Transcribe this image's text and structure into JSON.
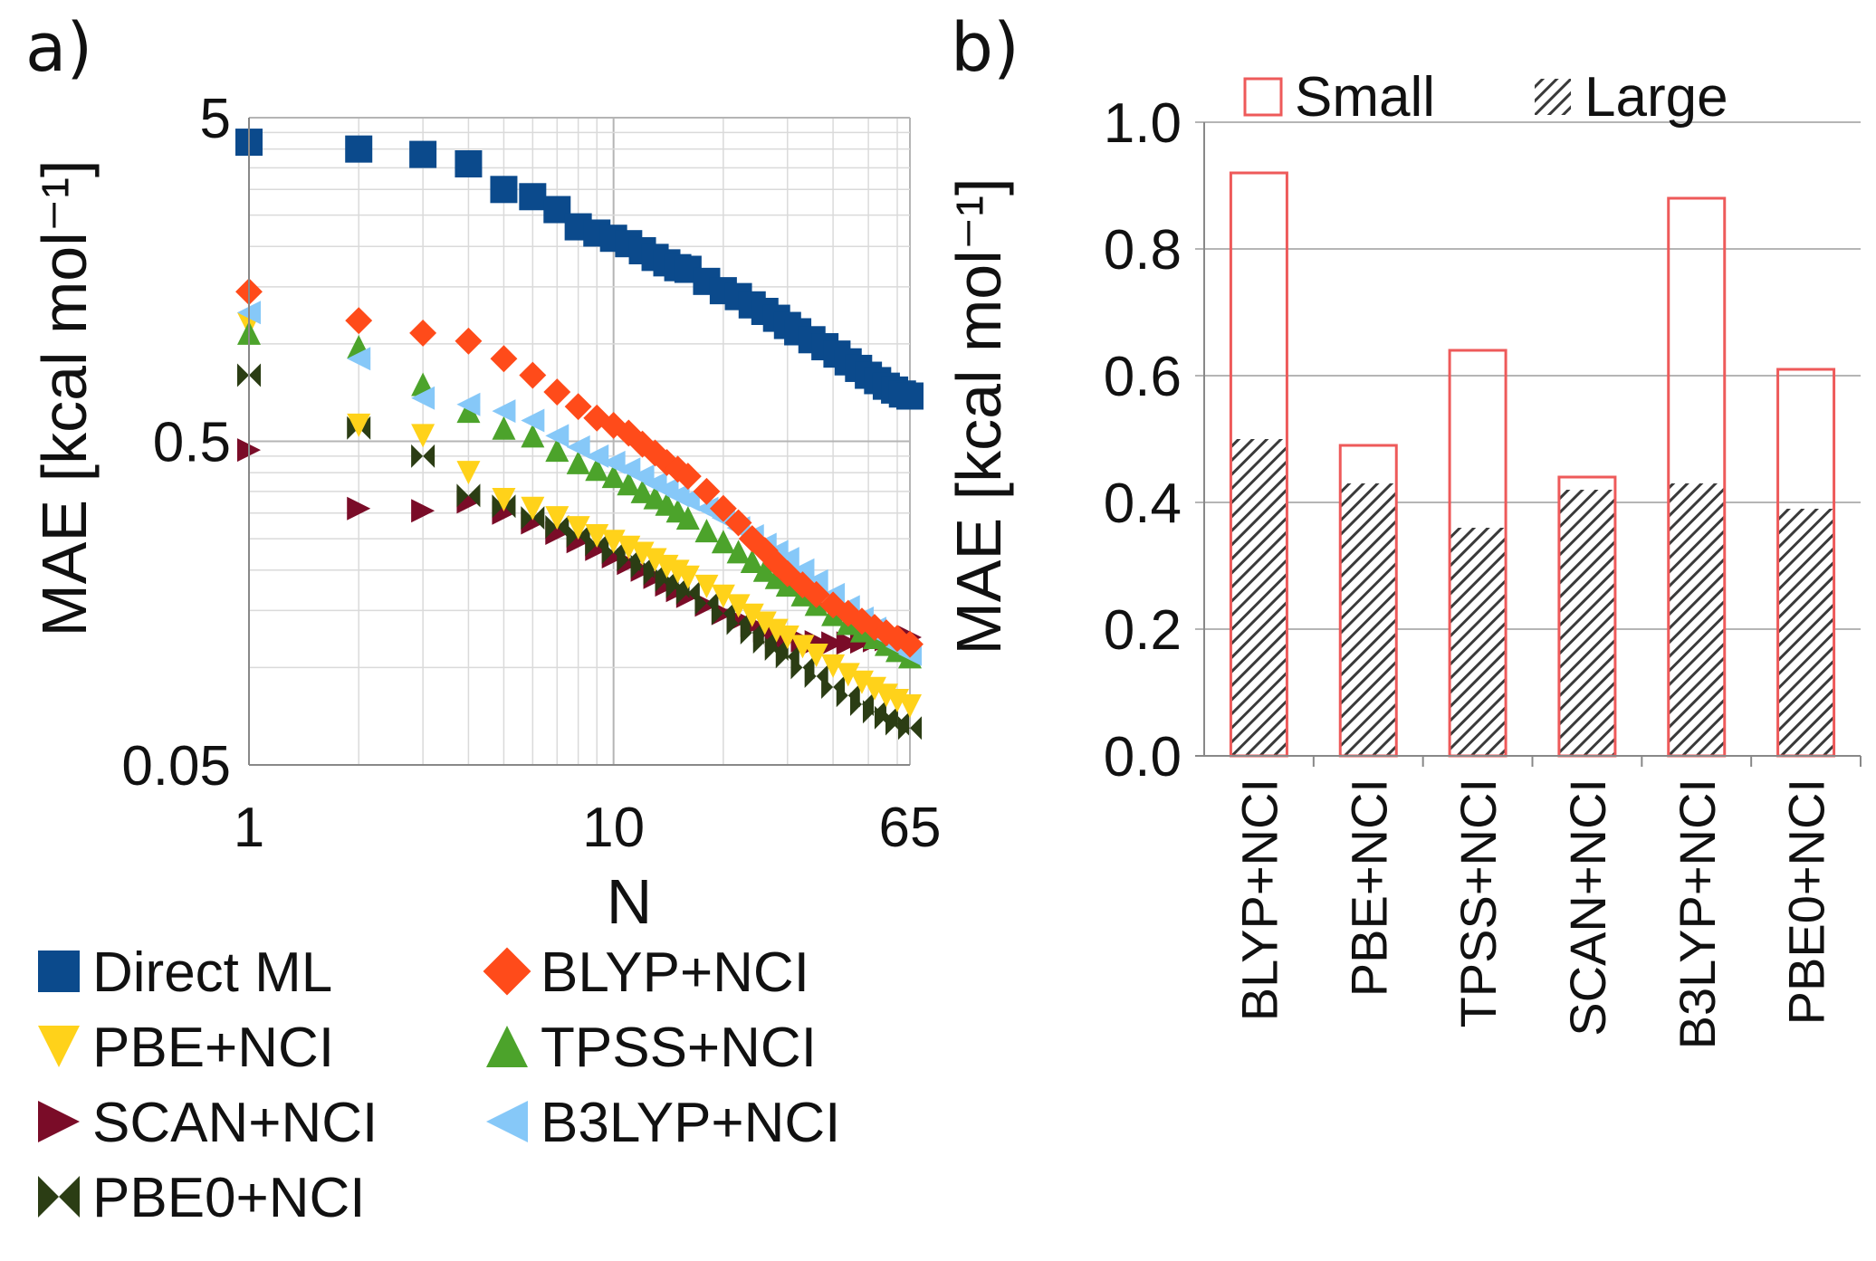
{
  "figure": {
    "panel_a_label": "a)",
    "panel_b_label": "b)"
  },
  "colors": {
    "direct": "#0b4a8c",
    "blyp": "#ff4b1a",
    "pbe": "#ffd21a",
    "tpss": "#4ca32b",
    "scan": "#7a0c28",
    "b3lyp": "#86c8f8",
    "pbe0": "#2b3d14",
    "bar_small": "#ee5a5a",
    "bar_large": "#3a3a3a",
    "grid": "#c8c8c8"
  },
  "chart_data": [
    {
      "id": "panel-a",
      "type": "scatter",
      "title": "",
      "xlabel": "N",
      "ylabel": "MAE [kcal mol⁻¹]",
      "xscale": "log",
      "yscale": "log",
      "xlim": [
        1,
        65
      ],
      "ylim": [
        0.05,
        5
      ],
      "xticks": [
        {
          "value": 1,
          "label": "1"
        },
        {
          "value": 10,
          "label": "10"
        },
        {
          "value": 65,
          "label": "65"
        }
      ],
      "yticks": [
        {
          "value": 5,
          "label": "5"
        },
        {
          "value": 0.5,
          "label": "0.5"
        },
        {
          "value": 0.05,
          "label": "0.05"
        }
      ],
      "grid": true,
      "legend_position": "bottom",
      "series": [
        {
          "name": "Direct ML",
          "key": "direct",
          "marker": "square",
          "points": [
            [
              1,
              4.2
            ],
            [
              2,
              4.0
            ],
            [
              3,
              3.85
            ],
            [
              4,
              3.6
            ],
            [
              5,
              3.0
            ],
            [
              6,
              2.85
            ],
            [
              7,
              2.6
            ],
            [
              8,
              2.3
            ],
            [
              9,
              2.2
            ],
            [
              10,
              2.12
            ],
            [
              11,
              2.04
            ],
            [
              12,
              1.94
            ],
            [
              13,
              1.85
            ],
            [
              14,
              1.78
            ],
            [
              15,
              1.72
            ],
            [
              16,
              1.7
            ],
            [
              18,
              1.56
            ],
            [
              20,
              1.46
            ],
            [
              22,
              1.4
            ],
            [
              24,
              1.32
            ],
            [
              26,
              1.26
            ],
            [
              28,
              1.2
            ],
            [
              30,
              1.14
            ],
            [
              32,
              1.09
            ],
            [
              35,
              1.03
            ],
            [
              38,
              0.98
            ],
            [
              41,
              0.93
            ],
            [
              44,
              0.88
            ],
            [
              47,
              0.84
            ],
            [
              50,
              0.8
            ],
            [
              53,
              0.77
            ],
            [
              56,
              0.74
            ],
            [
              59,
              0.72
            ],
            [
              62,
              0.7
            ],
            [
              65,
              0.69
            ]
          ]
        },
        {
          "name": "BLYP+NCI",
          "key": "blyp",
          "marker": "diamond",
          "points": [
            [
              1,
              1.45
            ],
            [
              2,
              1.18
            ],
            [
              3,
              1.08
            ],
            [
              4,
              1.02
            ],
            [
              5,
              0.9
            ],
            [
              6,
              0.8
            ],
            [
              7,
              0.71
            ],
            [
              8,
              0.64
            ],
            [
              9,
              0.59
            ],
            [
              10,
              0.56
            ],
            [
              11,
              0.53
            ],
            [
              12,
              0.49
            ],
            [
              13,
              0.46
            ],
            [
              14,
              0.43
            ],
            [
              15,
              0.41
            ],
            [
              16,
              0.39
            ],
            [
              18,
              0.35
            ],
            [
              20,
              0.31
            ],
            [
              22,
              0.28
            ],
            [
              24,
              0.25
            ],
            [
              26,
              0.23
            ],
            [
              28,
              0.21
            ],
            [
              30,
              0.195
            ],
            [
              33,
              0.18
            ],
            [
              36,
              0.168
            ],
            [
              40,
              0.156
            ],
            [
              44,
              0.147
            ],
            [
              48,
              0.139
            ],
            [
              52,
              0.133
            ],
            [
              56,
              0.128
            ],
            [
              60,
              0.123
            ],
            [
              65,
              0.118
            ]
          ]
        },
        {
          "name": "PBE+NCI",
          "key": "pbe",
          "marker": "triangle-down",
          "points": [
            [
              1,
              1.15
            ],
            [
              2,
              0.56
            ],
            [
              3,
              0.52
            ],
            [
              4,
              0.4
            ],
            [
              5,
              0.33
            ],
            [
              6,
              0.31
            ],
            [
              7,
              0.29
            ],
            [
              8,
              0.27
            ],
            [
              9,
              0.255
            ],
            [
              10,
              0.245
            ],
            [
              11,
              0.235
            ],
            [
              12,
              0.225
            ],
            [
              13,
              0.215
            ],
            [
              14,
              0.205
            ],
            [
              15,
              0.198
            ],
            [
              16,
              0.19
            ],
            [
              18,
              0.178
            ],
            [
              20,
              0.166
            ],
            [
              22,
              0.155
            ],
            [
              24,
              0.145
            ],
            [
              26,
              0.137
            ],
            [
              28,
              0.13
            ],
            [
              30,
              0.124
            ],
            [
              33,
              0.116
            ],
            [
              36,
              0.109
            ],
            [
              40,
              0.101
            ],
            [
              44,
              0.095
            ],
            [
              48,
              0.09
            ],
            [
              52,
              0.086
            ],
            [
              56,
              0.082
            ],
            [
              60,
              0.079
            ],
            [
              65,
              0.076
            ]
          ]
        },
        {
          "name": "TPSS+NCI",
          "key": "tpss",
          "marker": "triangle-up",
          "points": [
            [
              1,
              1.08
            ],
            [
              2,
              0.98
            ],
            [
              3,
              0.75
            ],
            [
              4,
              0.62
            ],
            [
              5,
              0.55
            ],
            [
              6,
              0.52
            ],
            [
              7,
              0.47
            ],
            [
              8,
              0.43
            ],
            [
              9,
              0.41
            ],
            [
              10,
              0.39
            ],
            [
              11,
              0.37
            ],
            [
              12,
              0.35
            ],
            [
              13,
              0.335
            ],
            [
              14,
              0.32
            ],
            [
              15,
              0.305
            ],
            [
              16,
              0.29
            ],
            [
              18,
              0.265
            ],
            [
              20,
              0.245
            ],
            [
              22,
              0.228
            ],
            [
              24,
              0.213
            ],
            [
              26,
              0.2
            ],
            [
              28,
              0.19
            ],
            [
              30,
              0.18
            ],
            [
              33,
              0.168
            ],
            [
              36,
              0.157
            ],
            [
              40,
              0.146
            ],
            [
              44,
              0.137
            ],
            [
              48,
              0.13
            ],
            [
              52,
              0.124
            ],
            [
              56,
              0.118
            ],
            [
              60,
              0.113
            ],
            [
              65,
              0.108
            ]
          ]
        },
        {
          "name": "SCAN+NCI",
          "key": "scan",
          "marker": "triangle-right",
          "points": [
            [
              1,
              0.47
            ],
            [
              2,
              0.31
            ],
            [
              3,
              0.305
            ],
            [
              4,
              0.325
            ],
            [
              5,
              0.3
            ],
            [
              6,
              0.28
            ],
            [
              7,
              0.26
            ],
            [
              8,
              0.245
            ],
            [
              9,
              0.232
            ],
            [
              10,
              0.22
            ],
            [
              11,
              0.21
            ],
            [
              12,
              0.2
            ],
            [
              13,
              0.19
            ],
            [
              14,
              0.18
            ],
            [
              15,
              0.173
            ],
            [
              16,
              0.166
            ],
            [
              18,
              0.156
            ],
            [
              20,
              0.147
            ],
            [
              22,
              0.14
            ],
            [
              24,
              0.135
            ],
            [
              26,
              0.13
            ],
            [
              28,
              0.126
            ],
            [
              30,
              0.123
            ],
            [
              33,
              0.121
            ],
            [
              36,
              0.12
            ],
            [
              40,
              0.119
            ],
            [
              44,
              0.119
            ],
            [
              48,
              0.12
            ],
            [
              52,
              0.121
            ],
            [
              56,
              0.122
            ],
            [
              60,
              0.123
            ],
            [
              65,
              0.124
            ]
          ]
        },
        {
          "name": "B3LYP+NCI",
          "key": "b3lyp",
          "marker": "triangle-left",
          "points": [
            [
              1,
              1.25
            ],
            [
              2,
              0.9
            ],
            [
              3,
              0.68
            ],
            [
              4,
              0.65
            ],
            [
              5,
              0.62
            ],
            [
              6,
              0.58
            ],
            [
              7,
              0.52
            ],
            [
              8,
              0.48
            ],
            [
              9,
              0.45
            ],
            [
              10,
              0.43
            ],
            [
              11,
              0.41
            ],
            [
              12,
              0.39
            ],
            [
              13,
              0.37
            ],
            [
              14,
              0.355
            ],
            [
              15,
              0.34
            ],
            [
              16,
              0.33
            ],
            [
              18,
              0.31
            ],
            [
              20,
              0.29
            ],
            [
              22,
              0.27
            ],
            [
              24,
              0.255
            ],
            [
              26,
              0.24
            ],
            [
              28,
              0.228
            ],
            [
              30,
              0.217
            ],
            [
              33,
              0.2
            ],
            [
              36,
              0.185
            ],
            [
              40,
              0.168
            ],
            [
              44,
              0.154
            ],
            [
              48,
              0.142
            ],
            [
              52,
              0.132
            ],
            [
              56,
              0.123
            ],
            [
              60,
              0.116
            ],
            [
              65,
              0.11
            ]
          ]
        },
        {
          "name": "PBE0+NCI",
          "key": "pbe0",
          "marker": "bowtie",
          "points": [
            [
              1,
              0.8
            ],
            [
              2,
              0.55
            ],
            [
              3,
              0.45
            ],
            [
              4,
              0.34
            ],
            [
              5,
              0.315
            ],
            [
              6,
              0.29
            ],
            [
              7,
              0.272
            ],
            [
              8,
              0.255
            ],
            [
              9,
              0.24
            ],
            [
              10,
              0.227
            ],
            [
              11,
              0.215
            ],
            [
              12,
              0.205
            ],
            [
              13,
              0.195
            ],
            [
              14,
              0.186
            ],
            [
              15,
              0.178
            ],
            [
              16,
              0.17
            ],
            [
              18,
              0.158
            ],
            [
              20,
              0.147
            ],
            [
              22,
              0.137
            ],
            [
              24,
              0.128
            ],
            [
              26,
              0.12
            ],
            [
              28,
              0.114
            ],
            [
              30,
              0.108
            ],
            [
              33,
              0.1
            ],
            [
              36,
              0.094
            ],
            [
              40,
              0.087
            ],
            [
              44,
              0.082
            ],
            [
              48,
              0.077
            ],
            [
              52,
              0.073
            ],
            [
              56,
              0.07
            ],
            [
              60,
              0.067
            ],
            [
              65,
              0.065
            ]
          ]
        }
      ]
    },
    {
      "id": "panel-b",
      "type": "bar",
      "title": "",
      "xlabel": "",
      "ylabel": "MAE [kcal mol⁻¹]",
      "ylim": [
        0,
        1.0
      ],
      "yticks": [
        "0.0",
        "0.2",
        "0.4",
        "0.6",
        "0.8",
        "1.0"
      ],
      "grid": true,
      "legend_position": "top",
      "categories": [
        "BLYP+NCI",
        "PBE+NCI",
        "TPSS+NCI",
        "SCAN+NCI",
        "B3LYP+NCI",
        "PBE0+NCI"
      ],
      "series": [
        {
          "name": "Small",
          "style": "outline",
          "values": [
            0.92,
            0.49,
            0.64,
            0.44,
            0.88,
            0.61
          ]
        },
        {
          "name": "Large",
          "style": "hatched",
          "values": [
            0.5,
            0.43,
            0.36,
            0.42,
            0.43,
            0.39
          ]
        }
      ]
    }
  ]
}
